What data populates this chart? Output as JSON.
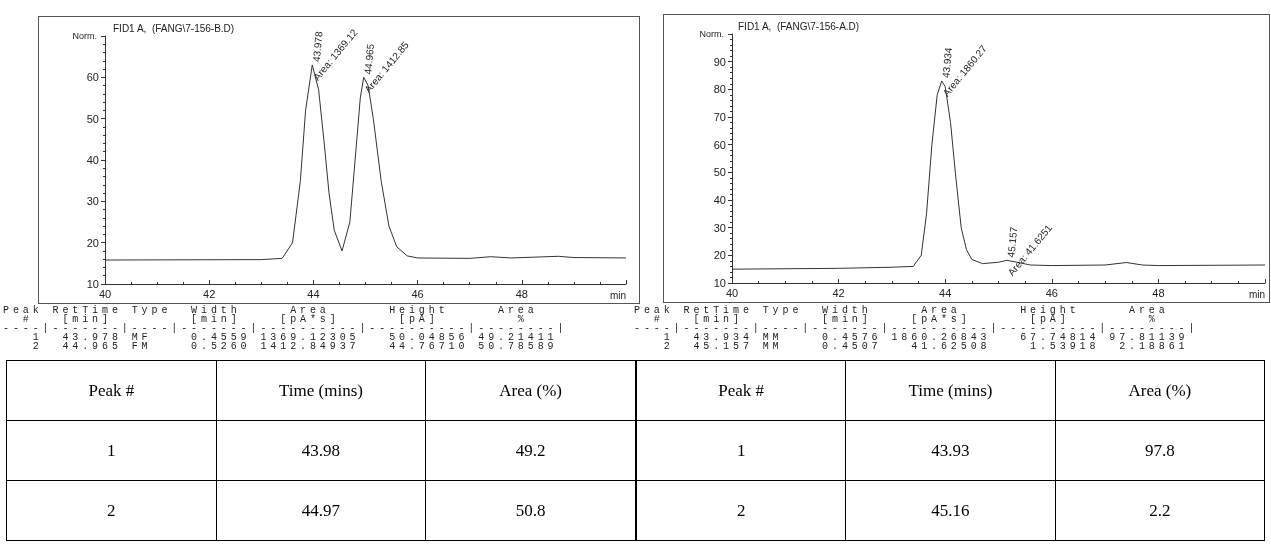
{
  "chart_data": [
    {
      "type": "line",
      "title": "FID1 A,  (FANG\\7-156-B.D)",
      "ylabel": "Norm.",
      "xlabel": "min",
      "xlim": [
        40,
        50
      ],
      "xticks": [
        40,
        42,
        44,
        46,
        48
      ],
      "ylim": [
        10,
        70
      ],
      "yticks": [
        10,
        20,
        30,
        40,
        50,
        60
      ],
      "grid": false,
      "marker": "none",
      "line_style": "solid",
      "series": [
        {
          "color": "#333333",
          "x": [
            40,
            43,
            43.4,
            43.6,
            43.75,
            43.85,
            43.978,
            44.1,
            44.2,
            44.3,
            44.4,
            44.55,
            44.7,
            44.8,
            44.9,
            44.965,
            45.05,
            45.15,
            45.3,
            45.45,
            45.6,
            45.8,
            46,
            47,
            47.4,
            47.8,
            48.7,
            49,
            50
          ],
          "values": [
            15.8,
            15.9,
            16.2,
            20,
            35,
            52,
            63,
            57,
            45,
            32,
            23,
            18,
            25,
            40,
            55,
            60,
            58,
            50,
            35,
            24,
            19,
            16.8,
            16.3,
            16.2,
            16.6,
            16.3,
            16.7,
            16.4,
            16.3
          ]
        }
      ],
      "annotations": [
        "Peak RetTime Type  Width     Area      Height     Area\n  #   [min]        [min]    [pA*s]      [pA]        %\n----|-------|----|-------|----------|----------|--------|\n   1  43.978 MF    0.4559 1369.12305   50.04856 49.21411\n   2  44.965 FM    0.5260 1412.84937   44.76710 50.78589",
        "Peak #",
        "Time (mins)",
        "Area (%)",
        "1",
        "43.98",
        "49.2",
        "2",
        "44.97",
        "50.8",
        {
          "text": "43.978",
          "x": 43.978,
          "y": 63
        },
        {
          "text": "Area: 1369.12",
          "x": 43.978,
          "y": 63
        },
        {
          "text": "44.965",
          "x": 44.965,
          "y": 60
        },
        {
          "text": "Area: 1412.85",
          "x": 44.965,
          "y": 60
        }
      ]
    },
    {
      "type": "line",
      "title": "FID1 A,  (FANG\\7-156-A.D)",
      "ylabel": "Norm.",
      "xlabel": "min",
      "xlim": [
        40,
        50
      ],
      "xticks": [
        40,
        42,
        44,
        46,
        48
      ],
      "ylim": [
        10,
        100
      ],
      "yticks": [
        10,
        20,
        30,
        40,
        50,
        60,
        70,
        80,
        90
      ],
      "grid": false,
      "marker": "none",
      "line_style": "solid",
      "series": [
        {
          "color": "#333333",
          "x": [
            40,
            42,
            43,
            43.4,
            43.55,
            43.65,
            43.75,
            43.85,
            43.934,
            44,
            44.1,
            44.2,
            44.3,
            44.4,
            44.5,
            44.7,
            45,
            45.157,
            45.35,
            45.6,
            46,
            47,
            47.4,
            47.7,
            48,
            50
          ],
          "values": [
            15,
            15.3,
            15.7,
            16,
            20,
            35,
            60,
            78,
            83,
            81,
            68,
            48,
            30,
            22,
            18.5,
            17,
            17.5,
            18.2,
            17.5,
            16.5,
            16.3,
            16.5,
            17.4,
            16.5,
            16.3,
            16.5
          ]
        }
      ],
      "annotations": [
        "Peak RetTime Type  Width     Area      Height     Area\n  #   [min]        [min]    [pA*s]      [pA]        %\n----|-------|----|-------|----------|----------|--------|\n   1  43.934 MM    0.4576 1860.26843   67.74814 97.81139\n   2  45.157 MM    0.4507   41.62508    1.53918  2.18861",
        "Peak #",
        "Time (mins)",
        "Area (%)",
        "1",
        "43.93",
        "97.8",
        "2",
        "45.16",
        "2.2",
        {
          "text": "43.934",
          "x": 43.934,
          "y": 83
        },
        {
          "text": "Area: 1860.27",
          "x": 43.934,
          "y": 83
        },
        {
          "text": "45.157",
          "x": 45.157,
          "y": 18.2
        },
        {
          "text": "Area: 41.6251",
          "x": 45.157,
          "y": 18.2
        }
      ]
    }
  ]
}
